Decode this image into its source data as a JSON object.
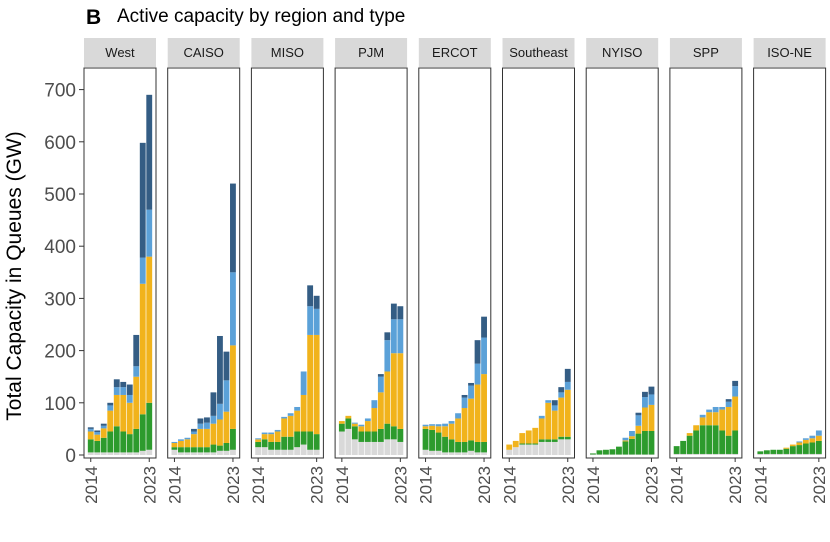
{
  "panel_letter": "B",
  "colors": {
    "base": "#d9d9d9",
    "solar": "#2d9b2d",
    "battery": "#f1b31c",
    "wind": "#5ba1d8",
    "other": "#345d84",
    "strip_bg": "#d9d9d9",
    "panel_border": "#333333"
  },
  "chart_data": {
    "type": "bar",
    "stacked": true,
    "title": "Active capacity by region and type",
    "ylabel": "Total Capacity in Queues (GW)",
    "ylim": [
      0,
      720
    ],
    "yticks": [
      0,
      100,
      200,
      300,
      400,
      500,
      600,
      700
    ],
    "x": [
      2014,
      2015,
      2016,
      2017,
      2018,
      2019,
      2020,
      2021,
      2022,
      2023
    ],
    "xticks": [
      "2014",
      "2023"
    ],
    "grid": false,
    "legend": "none",
    "layers": [
      "base",
      "solar",
      "battery",
      "wind",
      "other"
    ],
    "facets": [
      {
        "region": "West",
        "values": {
          "base": [
            5,
            5,
            5,
            5,
            5,
            5,
            5,
            5,
            8,
            10
          ],
          "solar": [
            25,
            22,
            28,
            40,
            50,
            40,
            35,
            45,
            70,
            90
          ],
          "battery": [
            15,
            12,
            18,
            40,
            60,
            70,
            60,
            100,
            250,
            280
          ],
          "wind": [
            5,
            5,
            5,
            10,
            15,
            15,
            15,
            20,
            50,
            90
          ],
          "other": [
            3,
            3,
            4,
            5,
            15,
            10,
            20,
            60,
            220,
            220
          ]
        }
      },
      {
        "region": "CAISO",
        "values": {
          "base": [
            10,
            5,
            5,
            5,
            5,
            5,
            5,
            8,
            8,
            10
          ],
          "solar": [
            5,
            10,
            10,
            10,
            10,
            10,
            15,
            10,
            15,
            40
          ],
          "battery": [
            8,
            12,
            15,
            25,
            35,
            35,
            40,
            50,
            60,
            160
          ],
          "wind": [
            2,
            3,
            3,
            5,
            10,
            12,
            15,
            30,
            60,
            140
          ],
          "other": [
            0,
            0,
            0,
            5,
            10,
            10,
            45,
            130,
            55,
            170
          ]
        }
      },
      {
        "region": "MISO",
        "values": {
          "base": [
            15,
            15,
            10,
            10,
            10,
            10,
            15,
            20,
            10,
            10
          ],
          "solar": [
            10,
            15,
            15,
            15,
            25,
            25,
            30,
            25,
            35,
            30
          ],
          "battery": [
            5,
            10,
            15,
            20,
            35,
            40,
            40,
            70,
            185,
            190
          ],
          "wind": [
            2,
            3,
            3,
            3,
            3,
            5,
            7,
            45,
            55,
            50
          ],
          "other": [
            0,
            0,
            0,
            0,
            0,
            0,
            0,
            0,
            40,
            25
          ]
        }
      },
      {
        "region": "PJM",
        "values": {
          "base": [
            45,
            50,
            30,
            25,
            25,
            25,
            25,
            30,
            30,
            25
          ],
          "solar": [
            15,
            20,
            25,
            20,
            20,
            20,
            25,
            30,
            25,
            25
          ],
          "battery": [
            5,
            5,
            5,
            10,
            20,
            45,
            70,
            100,
            140,
            145
          ],
          "wind": [
            0,
            0,
            2,
            3,
            5,
            15,
            30,
            60,
            65,
            65
          ],
          "other": [
            0,
            0,
            0,
            0,
            0,
            0,
            5,
            15,
            30,
            25
          ]
        }
      },
      {
        "region": "ERCOT",
        "values": {
          "base": [
            10,
            8,
            8,
            5,
            5,
            5,
            5,
            8,
            5,
            5
          ],
          "solar": [
            40,
            40,
            35,
            30,
            25,
            20,
            20,
            20,
            20,
            20
          ],
          "battery": [
            5,
            8,
            12,
            20,
            30,
            45,
            65,
            80,
            110,
            130
          ],
          "wind": [
            3,
            3,
            4,
            5,
            5,
            10,
            20,
            25,
            40,
            70
          ],
          "other": [
            0,
            0,
            0,
            0,
            0,
            0,
            5,
            5,
            45,
            40
          ]
        }
      },
      {
        "region": "Southeast",
        "values": {
          "base": [
            10,
            15,
            20,
            20,
            20,
            25,
            25,
            25,
            30,
            30
          ],
          "solar": [
            0,
            0,
            2,
            2,
            2,
            5,
            5,
            5,
            5,
            5
          ],
          "battery": [
            10,
            12,
            20,
            25,
            30,
            40,
            70,
            55,
            75,
            90
          ],
          "wind": [
            0,
            0,
            0,
            0,
            0,
            5,
            5,
            10,
            10,
            15
          ],
          "other": [
            0,
            0,
            0,
            0,
            0,
            0,
            0,
            10,
            10,
            25
          ]
        }
      },
      {
        "region": "NYISO",
        "values": {
          "base": [
            1,
            1,
            1,
            1,
            1,
            1,
            1,
            1,
            1,
            1
          ],
          "solar": [
            2,
            8,
            9,
            10,
            15,
            25,
            30,
            40,
            45,
            45
          ],
          "battery": [
            0,
            0,
            0,
            0,
            0,
            2,
            5,
            15,
            45,
            50
          ],
          "wind": [
            0,
            0,
            0,
            0,
            0,
            5,
            10,
            20,
            20,
            20
          ],
          "other": [
            0,
            0,
            0,
            0,
            0,
            0,
            0,
            5,
            10,
            15
          ]
        }
      },
      {
        "region": "SPP",
        "values": {
          "base": [
            2,
            2,
            2,
            2,
            2,
            2,
            2,
            2,
            2,
            2
          ],
          "solar": [
            15,
            25,
            35,
            45,
            55,
            55,
            55,
            45,
            35,
            45
          ],
          "battery": [
            0,
            0,
            5,
            10,
            15,
            25,
            25,
            40,
            55,
            65
          ],
          "wind": [
            0,
            0,
            0,
            0,
            5,
            5,
            10,
            5,
            10,
            20
          ],
          "other": [
            0,
            0,
            0,
            0,
            0,
            0,
            0,
            0,
            5,
            10
          ]
        }
      },
      {
        "region": "ISO-NE",
        "values": {
          "base": [
            2,
            2,
            2,
            2,
            2,
            2,
            2,
            2,
            2,
            2
          ],
          "solar": [
            5,
            7,
            8,
            8,
            10,
            15,
            17,
            20,
            22,
            25
          ],
          "battery": [
            0,
            0,
            0,
            0,
            2,
            3,
            5,
            7,
            8,
            10
          ],
          "wind": [
            0,
            0,
            0,
            0,
            0,
            0,
            2,
            3,
            5,
            10
          ],
          "other": [
            0,
            0,
            0,
            0,
            0,
            0,
            0,
            0,
            0,
            0
          ]
        }
      }
    ]
  }
}
